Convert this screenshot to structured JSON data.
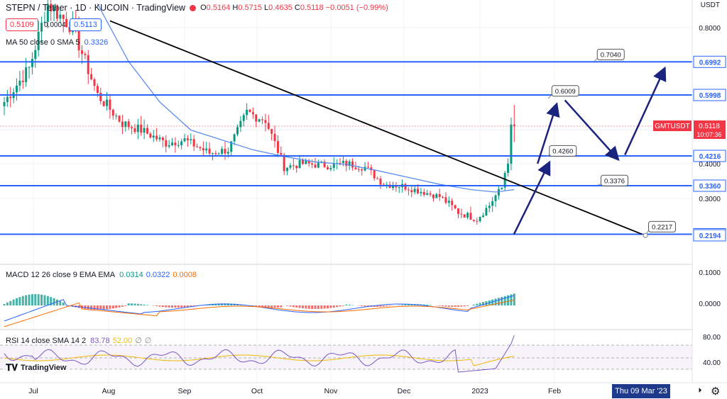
{
  "header": {
    "title": "STEPN / Tether · 1D · KUCOIN · TradingView",
    "ohlc": {
      "o_label": "O",
      "o": "0.5164",
      "h_label": "H",
      "h": "0.5715",
      "l_label": "L",
      "l": "0.4635",
      "c_label": "C",
      "c": "0.5118",
      "change": "−0.0051 (−0.99%)"
    },
    "sell_price": "0.5109",
    "spread": "0.0004",
    "buy_price": "0.5113",
    "currency": "USDT"
  },
  "ma_legend": {
    "label": "MA 50 close 0 SMA 5",
    "value": "0.3326"
  },
  "macd_legend": {
    "label": "MACD 12 26 close 9 EMA EMA",
    "hist": "0.0314",
    "macd": "0.0322",
    "signal": "0.0008"
  },
  "rsi_legend": {
    "label": "RSI 14 close SMA 14 2",
    "rsi": "83.78",
    "ma": "52.00",
    "x1": "∅",
    "x2": "∅"
  },
  "branding": {
    "logo_text": "TradingView"
  },
  "symbol_tag": {
    "name": "GMTUSDT",
    "price": "0.5118",
    "countdown": "10:07:36"
  },
  "axis": {
    "price_ticks": [
      "0.8000",
      "0.4000",
      "0.3000"
    ],
    "macd_ticks": [
      "0.1000",
      "0.0000"
    ],
    "rsi_ticks": [
      "80.00",
      "40.00"
    ],
    "time_labels": [
      "Jul",
      "Aug",
      "Sep",
      "Oct",
      "Nov",
      "Dec",
      "2023",
      "Feb"
    ],
    "crosshair_date": "Thu 09 Mar '23"
  },
  "colors": {
    "up": "#089981",
    "down": "#f23645",
    "level": "#2962ff",
    "trend": "#000000",
    "arrow": "#1a237e",
    "sma": "#5b8def",
    "macd_line": "#2962ff",
    "signal_line": "#ff6d00",
    "rsi_line": "#7e57c2",
    "rsi_ma": "#f5b800"
  },
  "chart_data": {
    "type": "candlestick",
    "title": "STEPN / Tether · 1D · KUCOIN",
    "x_range": [
      "Jul",
      "Mar"
    ],
    "y_range": [
      0.2,
      0.85
    ],
    "horizontal_levels": [
      "0.6992",
      "0.5998",
      "0.4216",
      "0.3360",
      "0.2217",
      "0.2194"
    ],
    "annotations": [
      "0.7040",
      "0.6009",
      "0.4260",
      "0.3376",
      "0.2217"
    ],
    "price_path": [
      [
        0,
        0.58
      ],
      [
        8,
        0.68
      ],
      [
        14,
        0.87
      ],
      [
        22,
        0.8
      ],
      [
        30,
        0.6
      ],
      [
        38,
        0.52
      ],
      [
        44,
        0.5
      ],
      [
        52,
        0.46
      ],
      [
        58,
        0.47
      ],
      [
        66,
        0.43
      ],
      [
        72,
        0.44
      ],
      [
        78,
        0.55
      ],
      [
        84,
        0.53
      ],
      [
        90,
        0.39
      ],
      [
        96,
        0.4
      ],
      [
        104,
        0.395
      ],
      [
        110,
        0.4
      ],
      [
        116,
        0.39
      ],
      [
        122,
        0.34
      ],
      [
        128,
        0.335
      ],
      [
        134,
        0.32
      ],
      [
        140,
        0.305
      ],
      [
        146,
        0.27
      ],
      [
        152,
        0.255
      ],
      [
        156,
        0.285
      ],
      [
        160,
        0.33
      ],
      [
        164,
        0.51
      ]
    ],
    "sma_path": [
      [
        30,
        0.87
      ],
      [
        40,
        0.7
      ],
      [
        50,
        0.58
      ],
      [
        60,
        0.5
      ],
      [
        70,
        0.47
      ],
      [
        80,
        0.44
      ],
      [
        90,
        0.42
      ],
      [
        100,
        0.405
      ],
      [
        110,
        0.398
      ],
      [
        120,
        0.38
      ],
      [
        130,
        0.36
      ],
      [
        140,
        0.34
      ],
      [
        150,
        0.325
      ],
      [
        158,
        0.318
      ],
      [
        164,
        0.325
      ]
    ],
    "trendline": [
      [
        34,
        0.82
      ],
      [
        205,
        0.222
      ]
    ]
  }
}
